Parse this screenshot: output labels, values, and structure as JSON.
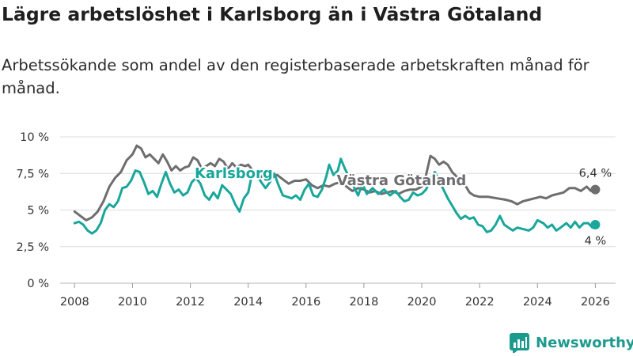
{
  "header": {
    "title": "Lägre arbetslöshet i Karlsborg än i Västra Götaland",
    "subtitle": "Arbetssökande som andel av den registerbaserade arbetskraften månad för månad."
  },
  "brand": {
    "name": "Newsworthy",
    "icon": "newsworthy-logo-icon"
  },
  "chart_data": {
    "type": "line",
    "title": "Lägre arbetslöshet i Karlsborg än i Västra Götaland",
    "xlabel": "",
    "ylabel": "",
    "xlim": [
      2007.5,
      2026.7
    ],
    "ylim": [
      0,
      10
    ],
    "grid": true,
    "yticks": [
      {
        "value": 0,
        "label": "0 %"
      },
      {
        "value": 2.5,
        "label": "2,5 %"
      },
      {
        "value": 5,
        "label": "5 %"
      },
      {
        "value": 7.5,
        "label": "7,5 %"
      },
      {
        "value": 10,
        "label": "10 %"
      }
    ],
    "xticks": [
      {
        "value": 2008,
        "label": "2008"
      },
      {
        "value": 2010,
        "label": "2010"
      },
      {
        "value": 2012,
        "label": "2012"
      },
      {
        "value": 2014,
        "label": "2014"
      },
      {
        "value": 2016,
        "label": "2016"
      },
      {
        "value": 2018,
        "label": "2018"
      },
      {
        "value": 2020,
        "label": "2020"
      },
      {
        "value": 2022,
        "label": "2022"
      },
      {
        "value": 2024,
        "label": "2024"
      },
      {
        "value": 2026,
        "label": "2026"
      }
    ],
    "series": [
      {
        "name": "Västra Götaland",
        "color": "#6e6e70",
        "end_label": "6,4 %",
        "points": [
          [
            2008.0,
            4.9
          ],
          [
            2008.2,
            4.6
          ],
          [
            2008.4,
            4.3
          ],
          [
            2008.6,
            4.5
          ],
          [
            2008.8,
            4.9
          ],
          [
            2009.0,
            5.6
          ],
          [
            2009.2,
            6.6
          ],
          [
            2009.4,
            7.2
          ],
          [
            2009.6,
            7.6
          ],
          [
            2009.8,
            8.4
          ],
          [
            2010.0,
            8.8
          ],
          [
            2010.15,
            9.4
          ],
          [
            2010.3,
            9.2
          ],
          [
            2010.45,
            8.6
          ],
          [
            2010.6,
            8.8
          ],
          [
            2010.75,
            8.5
          ],
          [
            2010.9,
            8.2
          ],
          [
            2011.05,
            8.8
          ],
          [
            2011.2,
            8.3
          ],
          [
            2011.35,
            7.7
          ],
          [
            2011.5,
            8.0
          ],
          [
            2011.65,
            7.7
          ],
          [
            2011.8,
            7.9
          ],
          [
            2011.95,
            8.0
          ],
          [
            2012.1,
            8.6
          ],
          [
            2012.25,
            8.4
          ],
          [
            2012.4,
            7.8
          ],
          [
            2012.55,
            8.0
          ],
          [
            2012.7,
            8.2
          ],
          [
            2012.85,
            8.0
          ],
          [
            2013.0,
            8.5
          ],
          [
            2013.15,
            8.3
          ],
          [
            2013.3,
            7.8
          ],
          [
            2013.45,
            8.2
          ],
          [
            2013.6,
            7.9
          ],
          [
            2013.75,
            8.1
          ],
          [
            2013.9,
            8.0
          ],
          [
            2014.0,
            8.1
          ],
          [
            2014.2,
            7.6
          ],
          [
            2014.4,
            7.2
          ],
          [
            2014.6,
            7.5
          ],
          [
            2014.8,
            7.2
          ],
          [
            2015.0,
            7.4
          ],
          [
            2015.2,
            7.1
          ],
          [
            2015.4,
            6.8
          ],
          [
            2015.6,
            7.0
          ],
          [
            2015.8,
            7.0
          ],
          [
            2016.0,
            7.1
          ],
          [
            2016.2,
            6.7
          ],
          [
            2016.4,
            6.5
          ],
          [
            2016.6,
            6.7
          ],
          [
            2016.8,
            6.6
          ],
          [
            2017.0,
            6.8
          ],
          [
            2017.2,
            6.9
          ],
          [
            2017.4,
            6.6
          ],
          [
            2017.6,
            6.3
          ],
          [
            2017.8,
            6.5
          ],
          [
            2018.0,
            6.4
          ],
          [
            2018.2,
            6.2
          ],
          [
            2018.4,
            6.3
          ],
          [
            2018.6,
            6.1
          ],
          [
            2018.8,
            6.2
          ],
          [
            2019.0,
            6.3
          ],
          [
            2019.2,
            6.1
          ],
          [
            2019.4,
            6.3
          ],
          [
            2019.6,
            6.4
          ],
          [
            2019.8,
            6.4
          ],
          [
            2020.0,
            6.6
          ],
          [
            2020.15,
            7.4
          ],
          [
            2020.3,
            8.7
          ],
          [
            2020.45,
            8.5
          ],
          [
            2020.6,
            8.1
          ],
          [
            2020.75,
            8.3
          ],
          [
            2020.9,
            8.1
          ],
          [
            2021.05,
            7.6
          ],
          [
            2021.2,
            7.3
          ],
          [
            2021.35,
            6.9
          ],
          [
            2021.5,
            6.7
          ],
          [
            2021.65,
            6.2
          ],
          [
            2021.8,
            6.0
          ],
          [
            2022.0,
            5.9
          ],
          [
            2022.3,
            5.9
          ],
          [
            2022.6,
            5.8
          ],
          [
            2022.9,
            5.7
          ],
          [
            2023.1,
            5.6
          ],
          [
            2023.3,
            5.4
          ],
          [
            2023.5,
            5.6
          ],
          [
            2023.7,
            5.7
          ],
          [
            2023.9,
            5.8
          ],
          [
            2024.1,
            5.9
          ],
          [
            2024.3,
            5.8
          ],
          [
            2024.5,
            6.0
          ],
          [
            2024.7,
            6.1
          ],
          [
            2024.9,
            6.2
          ],
          [
            2025.1,
            6.5
          ],
          [
            2025.3,
            6.5
          ],
          [
            2025.5,
            6.3
          ],
          [
            2025.7,
            6.6
          ],
          [
            2025.85,
            6.3
          ],
          [
            2026.0,
            6.4
          ]
        ]
      },
      {
        "name": "Karlsborg",
        "color": "#1aa79b",
        "end_label": "4 %",
        "points": [
          [
            2008.0,
            4.1
          ],
          [
            2008.15,
            4.2
          ],
          [
            2008.3,
            4.0
          ],
          [
            2008.45,
            3.6
          ],
          [
            2008.6,
            3.4
          ],
          [
            2008.75,
            3.6
          ],
          [
            2008.9,
            4.1
          ],
          [
            2009.05,
            5.0
          ],
          [
            2009.2,
            5.4
          ],
          [
            2009.35,
            5.2
          ],
          [
            2009.5,
            5.6
          ],
          [
            2009.65,
            6.5
          ],
          [
            2009.8,
            6.6
          ],
          [
            2009.95,
            7.0
          ],
          [
            2010.1,
            7.7
          ],
          [
            2010.25,
            7.6
          ],
          [
            2010.4,
            6.9
          ],
          [
            2010.55,
            6.1
          ],
          [
            2010.7,
            6.3
          ],
          [
            2010.85,
            5.9
          ],
          [
            2011.0,
            6.8
          ],
          [
            2011.15,
            7.6
          ],
          [
            2011.3,
            6.8
          ],
          [
            2011.45,
            6.2
          ],
          [
            2011.6,
            6.4
          ],
          [
            2011.75,
            6.0
          ],
          [
            2011.9,
            6.2
          ],
          [
            2012.05,
            6.9
          ],
          [
            2012.2,
            7.2
          ],
          [
            2012.35,
            6.8
          ],
          [
            2012.5,
            6.0
          ],
          [
            2012.65,
            5.7
          ],
          [
            2012.8,
            6.2
          ],
          [
            2012.95,
            5.8
          ],
          [
            2013.1,
            6.7
          ],
          [
            2013.25,
            6.4
          ],
          [
            2013.4,
            6.1
          ],
          [
            2013.55,
            5.4
          ],
          [
            2013.7,
            4.9
          ],
          [
            2013.85,
            5.8
          ],
          [
            2014.0,
            6.2
          ],
          [
            2014.15,
            7.6
          ],
          [
            2014.3,
            7.4
          ],
          [
            2014.45,
            6.9
          ],
          [
            2014.6,
            6.5
          ],
          [
            2014.75,
            6.9
          ],
          [
            2014.9,
            7.5
          ],
          [
            2015.05,
            6.7
          ],
          [
            2015.2,
            6.0
          ],
          [
            2015.35,
            5.9
          ],
          [
            2015.5,
            5.8
          ],
          [
            2015.65,
            6.0
          ],
          [
            2015.8,
            5.7
          ],
          [
            2015.95,
            6.4
          ],
          [
            2016.1,
            6.8
          ],
          [
            2016.25,
            6.0
          ],
          [
            2016.4,
            5.9
          ],
          [
            2016.55,
            6.4
          ],
          [
            2016.7,
            7.3
          ],
          [
            2016.8,
            8.1
          ],
          [
            2016.95,
            7.4
          ],
          [
            2017.1,
            7.7
          ],
          [
            2017.2,
            8.5
          ],
          [
            2017.35,
            7.8
          ],
          [
            2017.5,
            7.2
          ],
          [
            2017.65,
            6.6
          ],
          [
            2017.8,
            6.0
          ],
          [
            2017.95,
            6.8
          ],
          [
            2018.1,
            6.1
          ],
          [
            2018.3,
            6.5
          ],
          [
            2018.5,
            6.1
          ],
          [
            2018.7,
            6.4
          ],
          [
            2018.9,
            6.0
          ],
          [
            2019.1,
            6.3
          ],
          [
            2019.25,
            5.9
          ],
          [
            2019.4,
            5.6
          ],
          [
            2019.55,
            5.7
          ],
          [
            2019.7,
            6.2
          ],
          [
            2019.85,
            6.0
          ],
          [
            2020.0,
            6.1
          ],
          [
            2020.15,
            6.4
          ],
          [
            2020.3,
            7.1
          ],
          [
            2020.45,
            7.6
          ],
          [
            2020.6,
            7.0
          ],
          [
            2020.75,
            6.4
          ],
          [
            2020.9,
            5.8
          ],
          [
            2021.05,
            5.3
          ],
          [
            2021.2,
            4.8
          ],
          [
            2021.35,
            4.4
          ],
          [
            2021.5,
            4.6
          ],
          [
            2021.65,
            4.4
          ],
          [
            2021.8,
            4.5
          ],
          [
            2021.95,
            4.0
          ],
          [
            2022.1,
            3.9
          ],
          [
            2022.25,
            3.5
          ],
          [
            2022.4,
            3.6
          ],
          [
            2022.55,
            4.0
          ],
          [
            2022.7,
            4.6
          ],
          [
            2022.85,
            4.0
          ],
          [
            2023.0,
            3.8
          ],
          [
            2023.15,
            3.6
          ],
          [
            2023.3,
            3.8
          ],
          [
            2023.5,
            3.7
          ],
          [
            2023.7,
            3.6
          ],
          [
            2023.85,
            3.8
          ],
          [
            2024.0,
            4.3
          ],
          [
            2024.2,
            4.1
          ],
          [
            2024.35,
            3.8
          ],
          [
            2024.5,
            4.0
          ],
          [
            2024.65,
            3.6
          ],
          [
            2024.8,
            3.8
          ],
          [
            2025.0,
            4.1
          ],
          [
            2025.15,
            3.8
          ],
          [
            2025.3,
            4.2
          ],
          [
            2025.45,
            3.8
          ],
          [
            2025.6,
            4.1
          ],
          [
            2025.75,
            4.1
          ],
          [
            2025.9,
            3.8
          ],
          [
            2026.0,
            4.0
          ]
        ]
      }
    ],
    "annotations": [
      {
        "text": "Karlsborg",
        "series": "Karlsborg",
        "x": 2013.5,
        "y": 7.2
      },
      {
        "text": "Västra Götaland",
        "series": "Västra Götaland",
        "x": 2019.3,
        "y": 6.7
      }
    ]
  }
}
